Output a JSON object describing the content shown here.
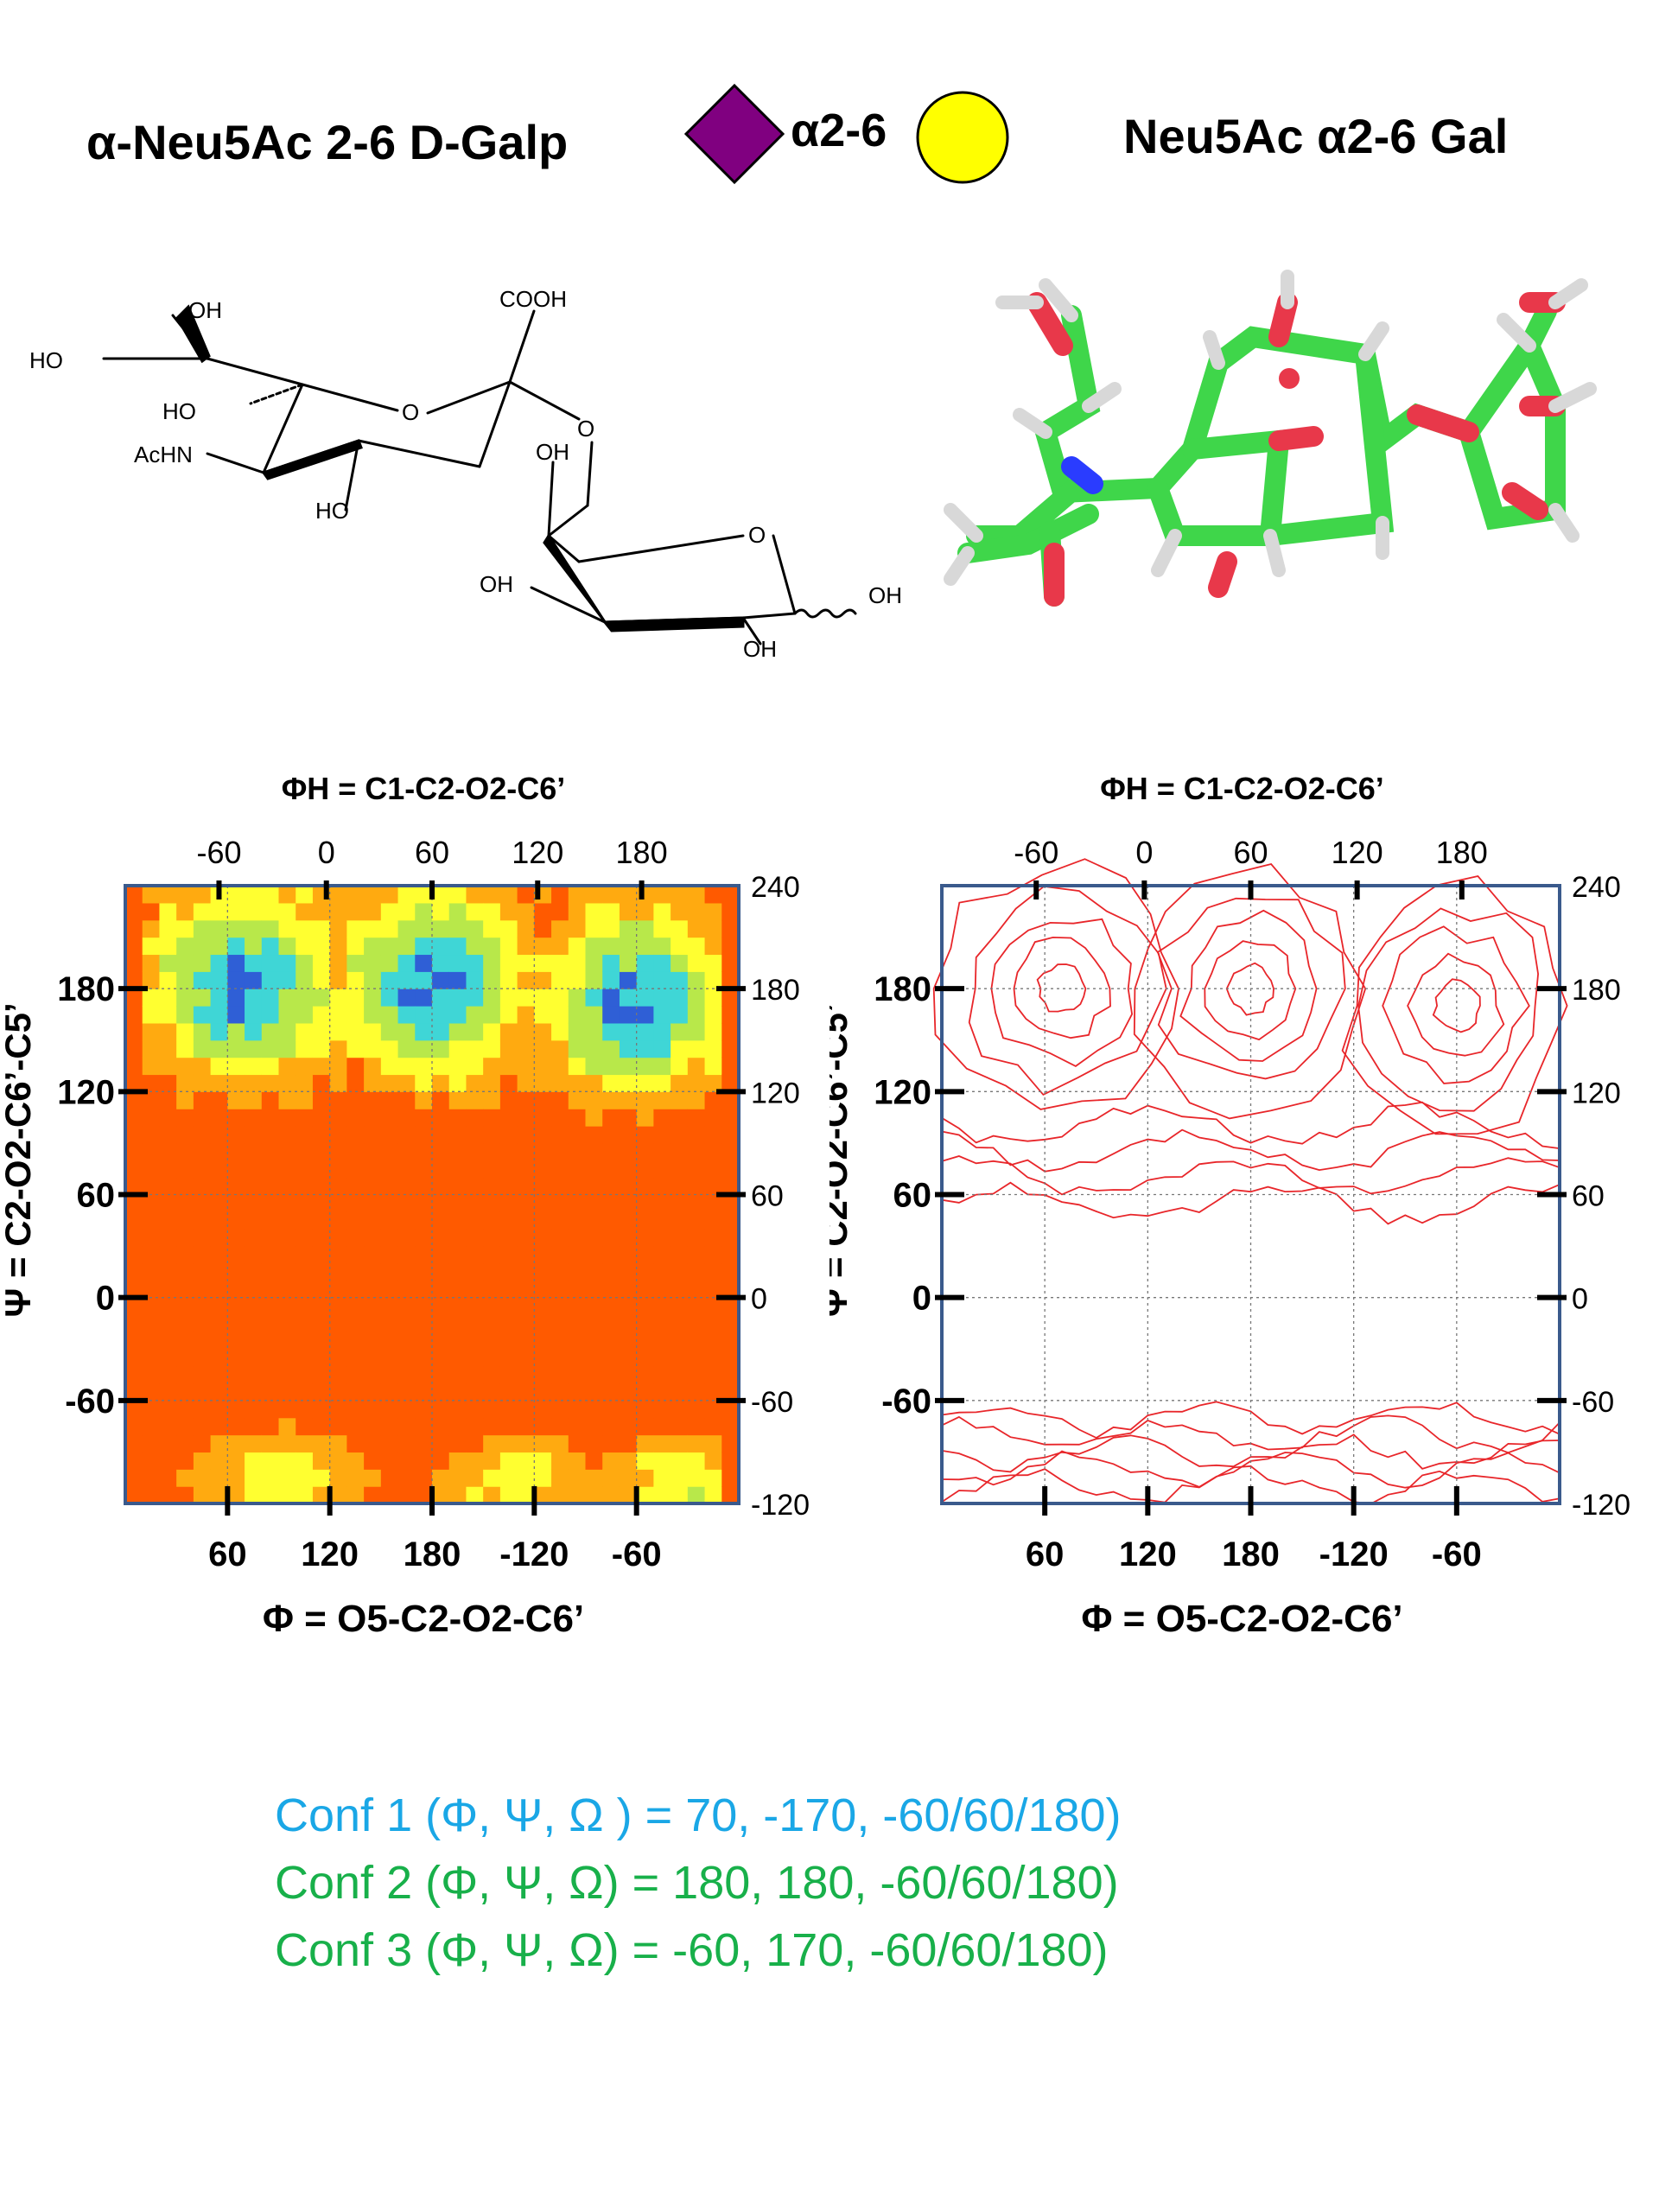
{
  "header": {
    "left_title": "α-Neu5Ac 2-6 D-Galp",
    "linkage_label": "α2-6",
    "right_title": "Neu5Ac α2-6 Gal",
    "colors": {
      "neu5ac": "#800080",
      "gal": "#FFFF00"
    }
  },
  "structure_labels": {
    "oh_top": "OH",
    "cooh": "COOH",
    "ho_left": "HO",
    "ho_mid": "HO",
    "o_ring1": "O",
    "o_link": "O",
    "achn": "AcHN",
    "ho_bottom": "HO",
    "oh_gal6": "OH",
    "o_ring2": "O",
    "ho_gal4": "OH",
    "oh_anomeric": "OH",
    "oh_gal2": "OH"
  },
  "chart_data": [
    {
      "type": "heatmap",
      "title": "",
      "top_label": "ΦH = C1-C2-O2-C6’",
      "xlabel": "Φ = O5-C2-O2-C6’",
      "ylabel": "Ψ = C2-O2-C6’-C5’",
      "top_ticks": [
        "-60",
        "0",
        "60",
        "120",
        "180"
      ],
      "bottom_ticks": [
        "60",
        "120",
        "180",
        "-120",
        "-60"
      ],
      "left_ticks": [
        "180",
        "120",
        "60",
        "0",
        "-60"
      ],
      "right_ticks": [
        "240",
        "180",
        "120",
        "60",
        "0",
        "-60",
        "-120"
      ],
      "xlim": [
        0,
        360
      ],
      "ylim": [
        -120,
        240
      ],
      "grid": true,
      "colorscale": [
        "#2f5fd6",
        "#3fd6d6",
        "#b8e84a",
        "#ffff30",
        "#ffaa10",
        "#ff5a00"
      ],
      "low_energy_wells": [
        {
          "phi": 70,
          "psi": 180
        },
        {
          "phi": 180,
          "psi": 180
        },
        {
          "phi": 300,
          "psi": 170
        },
        {
          "phi": 90,
          "psi": -90
        },
        {
          "phi": 230,
          "psi": -95
        },
        {
          "phi": 330,
          "psi": -100
        }
      ],
      "forbidden_band": [
        -70,
        60
      ]
    },
    {
      "type": "contour",
      "title": "",
      "top_label": "ΦH = C1-C2-O2-C6’",
      "xlabel": "Φ = O5-C2-O2-C6’",
      "ylabel": "Ψ = C2-O2-C6’-C5’",
      "top_ticks": [
        "-60",
        "0",
        "60",
        "120",
        "180"
      ],
      "bottom_ticks": [
        "60",
        "120",
        "180",
        "-120",
        "-60"
      ],
      "left_ticks": [
        "180",
        "120",
        "60",
        "0",
        "-60"
      ],
      "right_ticks": [
        "240",
        "180",
        "120",
        "60",
        "0",
        "-60",
        "-120"
      ],
      "xlim": [
        0,
        360
      ],
      "ylim": [
        -120,
        240
      ],
      "grid": true,
      "line_color": "#e8262a",
      "frame_color": "#3a5a8c"
    }
  ],
  "conformations": [
    {
      "text": "Conf 1 (Φ, Ψ, Ω ) = 70, -170, -60/60/180)",
      "color": "#1aa7e6"
    },
    {
      "text": "Conf 2 (Φ, Ψ, Ω) =  180, 180, -60/60/180)",
      "color": "#18b04a"
    },
    {
      "text": "Conf 3 (Φ, Ψ, Ω) =  -60,  170, -60/60/180)",
      "color": "#18b04a"
    }
  ]
}
